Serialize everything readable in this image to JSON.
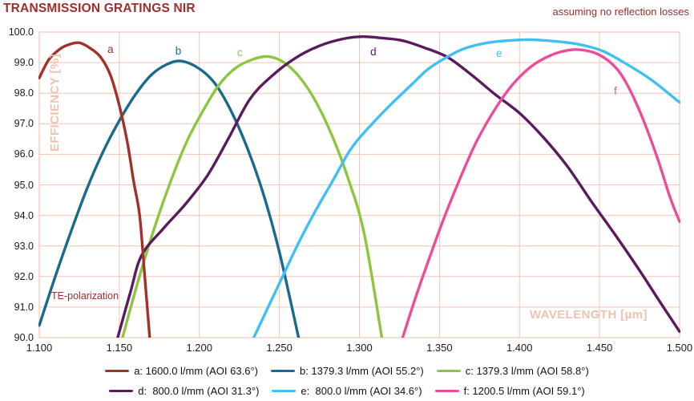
{
  "page": {
    "title": "TRANSMISSION GRATINGS NIR",
    "annotation_top_right": "assuming no reflection losses",
    "polarization_note": "TE-polarization"
  },
  "colors": {
    "title_red": "#9C2E2B",
    "grid_pink": "#F1C5B5",
    "axis_title_pink": "#EFC2B0",
    "tick_text": "#1A1A1A"
  },
  "chart_data": {
    "type": "line",
    "title": "TRANSMISSION GRATINGS NIR",
    "xlabel": "WAVELENGTH [µm]",
    "ylabel": "EFFICIENCY [%]",
    "xlim": [
      1.1,
      1.5
    ],
    "ylim": [
      90.0,
      100.0
    ],
    "x_ticks": [
      "1.100",
      "1.150",
      "1.200",
      "1.250",
      "1.300",
      "1.350",
      "1.400",
      "1.450",
      "1.500"
    ],
    "y_ticks": [
      "100.0",
      "99.0",
      "98.0",
      "97.0",
      "96.0",
      "95.0",
      "94.0",
      "93.0",
      "92.0",
      "91.0",
      "90.0"
    ],
    "grid": true,
    "legend_position": "bottom",
    "draw_order": [
      "b",
      "c",
      "d",
      "e",
      "f",
      "a"
    ],
    "series": [
      {
        "id": "a",
        "label": "a: 1600.0 l/mm (AOI 63.6°)",
        "color": "#A3312A",
        "legend_row": 0,
        "points": [
          [
            1.1,
            98.5
          ],
          [
            1.106,
            99.1
          ],
          [
            1.113,
            99.45
          ],
          [
            1.119,
            99.6
          ],
          [
            1.125,
            99.65
          ],
          [
            1.131,
            99.5
          ],
          [
            1.138,
            99.2
          ],
          [
            1.1444,
            98.6
          ],
          [
            1.15,
            97.6
          ],
          [
            1.155,
            96.4
          ],
          [
            1.159,
            95.1
          ],
          [
            1.1627,
            94.0
          ],
          [
            1.1659,
            92.0
          ],
          [
            1.169,
            90.0
          ]
        ]
      },
      {
        "id": "b",
        "label": "b: 1379.3 l/mm (AOI 55.2°)",
        "color": "#1A6A8E",
        "legend_row": 0,
        "points": [
          [
            1.1,
            90.4
          ],
          [
            1.11,
            92.0
          ],
          [
            1.12,
            93.5
          ],
          [
            1.13,
            94.9
          ],
          [
            1.14,
            96.1
          ],
          [
            1.15,
            97.1
          ],
          [
            1.16,
            97.95
          ],
          [
            1.17,
            98.6
          ],
          [
            1.18,
            98.95
          ],
          [
            1.189,
            99.05
          ],
          [
            1.2,
            98.8
          ],
          [
            1.21,
            98.3
          ],
          [
            1.22,
            97.4
          ],
          [
            1.23,
            96.2
          ],
          [
            1.24,
            94.7
          ],
          [
            1.25,
            92.8
          ],
          [
            1.262,
            90.0
          ]
        ]
      },
      {
        "id": "c",
        "label": "c: 1379.3 l/mm (AOI 58.8°)",
        "color": "#8CC63F",
        "legend_row": 0,
        "points": [
          [
            1.152,
            90.0
          ],
          [
            1.162,
            91.9
          ],
          [
            1.172,
            93.6
          ],
          [
            1.182,
            95.1
          ],
          [
            1.192,
            96.4
          ],
          [
            1.202,
            97.4
          ],
          [
            1.212,
            98.25
          ],
          [
            1.222,
            98.8
          ],
          [
            1.233,
            99.1
          ],
          [
            1.243,
            99.2
          ],
          [
            1.253,
            99.0
          ],
          [
            1.263,
            98.5
          ],
          [
            1.273,
            97.7
          ],
          [
            1.283,
            96.6
          ],
          [
            1.293,
            95.2
          ],
          [
            1.303,
            93.4
          ],
          [
            1.314,
            90.0
          ]
        ]
      },
      {
        "id": "d",
        "label": "d:  800.0 l/mm (AOI 31.3°)",
        "color": "#591A5E",
        "legend_row": 1,
        "points": [
          [
            1.149,
            90.0
          ],
          [
            1.157,
            91.5
          ],
          [
            1.164,
            92.7
          ],
          [
            1.178,
            93.6
          ],
          [
            1.191,
            94.35
          ],
          [
            1.205,
            95.3
          ],
          [
            1.218,
            96.5
          ],
          [
            1.2315,
            97.8
          ],
          [
            1.245,
            98.55
          ],
          [
            1.26,
            99.15
          ],
          [
            1.275,
            99.55
          ],
          [
            1.29,
            99.78
          ],
          [
            1.302,
            99.85
          ],
          [
            1.315,
            99.8
          ],
          [
            1.327,
            99.72
          ],
          [
            1.34,
            99.5
          ],
          [
            1.355,
            99.18
          ],
          [
            1.37,
            98.6
          ],
          [
            1.385,
            97.95
          ],
          [
            1.4,
            97.35
          ],
          [
            1.415,
            96.55
          ],
          [
            1.43,
            95.6
          ],
          [
            1.445,
            94.45
          ],
          [
            1.46,
            93.35
          ],
          [
            1.475,
            92.2
          ],
          [
            1.488,
            91.15
          ],
          [
            1.5,
            90.2
          ]
        ]
      },
      {
        "id": "e",
        "label": "e:  800.0 l/mm (AOI 34.6°)",
        "color": "#3FC0F0",
        "legend_row": 1,
        "points": [
          [
            1.234,
            90.0
          ],
          [
            1.243,
            91.0
          ],
          [
            1.252,
            92.0
          ],
          [
            1.262,
            93.1
          ],
          [
            1.272,
            94.1
          ],
          [
            1.283,
            95.1
          ],
          [
            1.295,
            96.2
          ],
          [
            1.308,
            97.0
          ],
          [
            1.32,
            97.65
          ],
          [
            1.333,
            98.3
          ],
          [
            1.342,
            98.75
          ],
          [
            1.352,
            99.1
          ],
          [
            1.365,
            99.45
          ],
          [
            1.38,
            99.65
          ],
          [
            1.395,
            99.73
          ],
          [
            1.408,
            99.75
          ],
          [
            1.422,
            99.7
          ],
          [
            1.437,
            99.6
          ],
          [
            1.452,
            99.38
          ],
          [
            1.467,
            98.95
          ],
          [
            1.482,
            98.45
          ],
          [
            1.5,
            97.7
          ]
        ]
      },
      {
        "id": "f",
        "label": "f: 1200.5 l/mm (AOI 59.1°)",
        "color": "#EC4D9B",
        "legend_row": 1,
        "points": [
          [
            1.327,
            90.0
          ],
          [
            1.335,
            91.3
          ],
          [
            1.343,
            92.5
          ],
          [
            1.352,
            93.8
          ],
          [
            1.362,
            95.1
          ],
          [
            1.373,
            96.4
          ],
          [
            1.385,
            97.5
          ],
          [
            1.396,
            98.3
          ],
          [
            1.408,
            98.9
          ],
          [
            1.42,
            99.25
          ],
          [
            1.43,
            99.4
          ],
          [
            1.438,
            99.42
          ],
          [
            1.448,
            99.3
          ],
          [
            1.458,
            98.95
          ],
          [
            1.466,
            98.4
          ],
          [
            1.476,
            97.3
          ],
          [
            1.486,
            95.9
          ],
          [
            1.494,
            94.6
          ],
          [
            1.5,
            93.8
          ]
        ]
      }
    ],
    "curve_letter_labels": [
      {
        "id": "a",
        "text": "a",
        "x": 1.1446,
        "y": 99.42
      },
      {
        "id": "b",
        "text": "b",
        "x": 1.187,
        "y": 99.38
      },
      {
        "id": "c",
        "text": "c",
        "x": 1.2256,
        "y": 99.32
      },
      {
        "id": "d",
        "text": "d",
        "x": 1.3088,
        "y": 99.34
      },
      {
        "id": "e",
        "text": "e",
        "x": 1.3874,
        "y": 99.28
      },
      {
        "id": "f",
        "text": "f",
        "x": 1.461,
        "y": 98.05
      }
    ]
  }
}
